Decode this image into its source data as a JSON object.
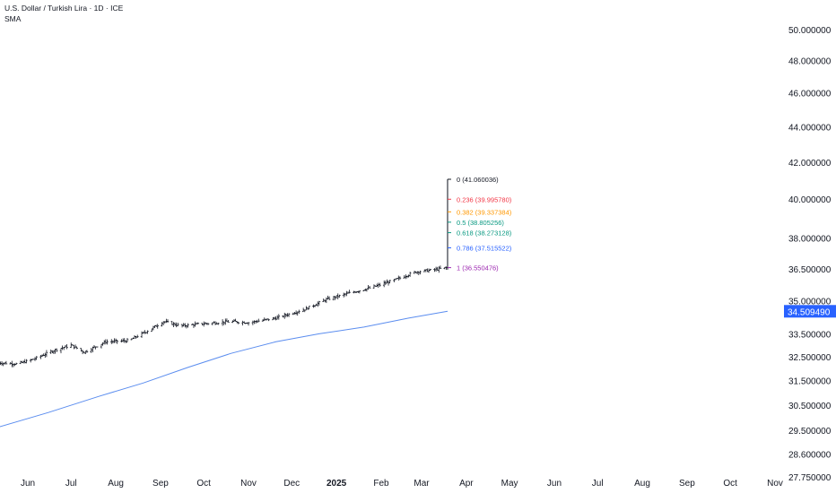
{
  "header": {
    "title": "U.S. Dollar / Turkish Lira · 1D · ICE",
    "indicator": "SMA"
  },
  "colors": {
    "candle": "#131722",
    "sma": "#5b8def",
    "price_tag_bg": "#2962ff",
    "axis_text": "#131722"
  },
  "chart_data": {
    "type": "line",
    "yaxis": {
      "scale": "log",
      "ylim": [
        27.75,
        51.2
      ],
      "ticks": [
        "50.000000",
        "48.000000",
        "46.000000",
        "44.000000",
        "42.000000",
        "40.000000",
        "38.000000",
        "36.500000",
        "35.000000",
        "33.500000",
        "32.500000",
        "31.500000",
        "30.500000",
        "29.500000",
        "28.600000",
        "27.750000"
      ]
    },
    "xaxis": {
      "ticks": [
        {
          "label": "Jun",
          "date": "2024-06-01",
          "bold": false
        },
        {
          "label": "Jul",
          "date": "2024-07-01",
          "bold": false
        },
        {
          "label": "Aug",
          "date": "2024-08-01",
          "bold": false
        },
        {
          "label": "Sep",
          "date": "2024-09-01",
          "bold": false
        },
        {
          "label": "Oct",
          "date": "2024-10-01",
          "bold": false
        },
        {
          "label": "Nov",
          "date": "2024-11-01",
          "bold": false
        },
        {
          "label": "Dec",
          "date": "2024-12-01",
          "bold": false
        },
        {
          "label": "2025",
          "date": "2025-01-01",
          "bold": true
        },
        {
          "label": "Feb",
          "date": "2025-02-01",
          "bold": false
        },
        {
          "label": "Mar",
          "date": "2025-03-01",
          "bold": false
        },
        {
          "label": "Apr",
          "date": "2025-04-01",
          "bold": false
        },
        {
          "label": "May",
          "date": "2025-05-01",
          "bold": false
        },
        {
          "label": "Jun",
          "date": "2025-06-01",
          "bold": false
        },
        {
          "label": "Jul",
          "date": "2025-07-01",
          "bold": false
        },
        {
          "label": "Aug",
          "date": "2025-08-01",
          "bold": false
        },
        {
          "label": "Sep",
          "date": "2025-09-01",
          "bold": false
        },
        {
          "label": "Oct",
          "date": "2025-10-01",
          "bold": false
        },
        {
          "label": "Nov",
          "date": "2025-11-01",
          "bold": false
        }
      ]
    },
    "price_path": [
      {
        "date": "2024-05-10",
        "value": 32.25
      },
      {
        "date": "2024-05-25",
        "value": 32.2
      },
      {
        "date": "2024-06-05",
        "value": 32.4
      },
      {
        "date": "2024-06-20",
        "value": 32.8
      },
      {
        "date": "2024-07-01",
        "value": 33.0
      },
      {
        "date": "2024-07-10",
        "value": 32.7
      },
      {
        "date": "2024-07-25",
        "value": 33.15
      },
      {
        "date": "2024-08-10",
        "value": 33.2
      },
      {
        "date": "2024-08-25",
        "value": 33.7
      },
      {
        "date": "2024-09-03",
        "value": 34.05
      },
      {
        "date": "2024-09-15",
        "value": 33.85
      },
      {
        "date": "2024-10-01",
        "value": 33.95
      },
      {
        "date": "2024-10-20",
        "value": 34.05
      },
      {
        "date": "2024-11-01",
        "value": 34.0
      },
      {
        "date": "2024-11-20",
        "value": 34.2
      },
      {
        "date": "2024-12-10",
        "value": 34.6
      },
      {
        "date": "2024-12-25",
        "value": 35.05
      },
      {
        "date": "2025-01-10",
        "value": 35.35
      },
      {
        "date": "2025-01-25",
        "value": 35.6
      },
      {
        "date": "2025-02-10",
        "value": 35.95
      },
      {
        "date": "2025-02-25",
        "value": 36.35
      },
      {
        "date": "2025-03-10",
        "value": 36.45
      },
      {
        "date": "2025-03-18",
        "value": 36.55
      },
      {
        "date": "2025-03-19",
        "value": 36.9
      }
    ],
    "series": [
      {
        "name": "SMA",
        "points": [
          {
            "date": "2024-05-10",
            "value": 29.6
          },
          {
            "date": "2024-06-15",
            "value": 30.2
          },
          {
            "date": "2024-07-20",
            "value": 30.85
          },
          {
            "date": "2024-08-20",
            "value": 31.4
          },
          {
            "date": "2024-09-20",
            "value": 32.05
          },
          {
            "date": "2024-10-20",
            "value": 32.65
          },
          {
            "date": "2024-11-20",
            "value": 33.15
          },
          {
            "date": "2024-12-20",
            "value": 33.5
          },
          {
            "date": "2025-01-20",
            "value": 33.8
          },
          {
            "date": "2025-02-20",
            "value": 34.2
          },
          {
            "date": "2025-03-19",
            "value": 34.51
          }
        ]
      }
    ],
    "spike": {
      "date": "2025-03-19",
      "low": 36.45,
      "high": 41.06
    },
    "current_price": {
      "label": "34.509490",
      "value": 34.50949
    },
    "fibonacci": {
      "anchor_date": "2025-03-19",
      "levels": [
        {
          "label": "0 (41.060036)",
          "value": 41.060036,
          "color": "#131722"
        },
        {
          "label": "0.236 (39.995780)",
          "value": 39.99578,
          "color": "#f23645"
        },
        {
          "label": "0.382 (39.337384)",
          "value": 39.337384,
          "color": "#ff9800"
        },
        {
          "label": "0.5 (38.805256)",
          "value": 38.805256,
          "color": "#089981"
        },
        {
          "label": "0.618 (38.273128)",
          "value": 38.273128,
          "color": "#089981"
        },
        {
          "label": "0.786 (37.515522)",
          "value": 37.515522,
          "color": "#2962ff"
        },
        {
          "label": "1 (36.550476)",
          "value": 36.550476,
          "color": "#9c27b0"
        }
      ]
    }
  }
}
